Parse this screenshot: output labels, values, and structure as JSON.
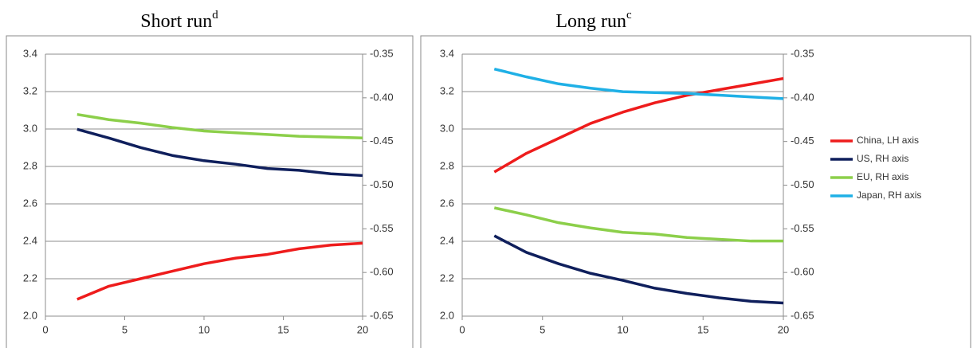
{
  "chart_data": [
    {
      "type": "line",
      "title": "Short run",
      "title_superscript": "d",
      "x": [
        2,
        4,
        6,
        8,
        10,
        12,
        14,
        16,
        18,
        20
      ],
      "xlim": [
        0,
        20
      ],
      "xticks": [
        0,
        5,
        10,
        15,
        20
      ],
      "ylim": [
        2.0,
        3.4
      ],
      "yticks": [
        {
          "value": 2.0,
          "label": "2.0"
        },
        2.2,
        2.4,
        2.6,
        2.8,
        {
          "value": 3.0,
          "label": "3.0"
        },
        3.2,
        3.4
      ],
      "y2lim": [
        -0.65,
        -0.35
      ],
      "y2ticks": [
        -0.65,
        {
          "value": -0.6,
          "label": "-0.60"
        },
        -0.55,
        {
          "value": -0.5,
          "label": "-0.50"
        },
        -0.45,
        {
          "value": -0.4,
          "label": "-0.40"
        },
        -0.35
      ],
      "grid": true,
      "series": [
        {
          "color": "#ee1c1c",
          "values": [
            2.09,
            2.16,
            2.2,
            2.24,
            2.28,
            2.31,
            2.33,
            2.36,
            2.38,
            2.39
          ]
        },
        {
          "color": "#0f1f5c",
          "axis": "y2",
          "values": [
            -0.436,
            -0.446,
            -0.457,
            -0.466,
            -0.472,
            -0.476,
            -0.481,
            -0.483,
            -0.487,
            -0.489
          ]
        },
        {
          "color": "#8ccf4a",
          "axis": "y2",
          "values": [
            -0.419,
            -0.425,
            -0.429,
            -0.434,
            -0.438,
            -0.44,
            -0.442,
            -0.444,
            -0.445,
            -0.446
          ]
        }
      ]
    },
    {
      "type": "line",
      "title": "Long run",
      "title_superscript": "c",
      "x": [
        2,
        4,
        6,
        8,
        10,
        12,
        14,
        16,
        18,
        20
      ],
      "xlim": [
        0,
        20
      ],
      "xticks": [
        0,
        5,
        10,
        15,
        20
      ],
      "ylim": [
        2.0,
        3.4
      ],
      "yticks": [
        {
          "value": 2.0,
          "label": "2.0"
        },
        2.2,
        2.4,
        2.6,
        2.8,
        {
          "value": 3.0,
          "label": "3.0"
        },
        3.2,
        3.4
      ],
      "y2lim": [
        -0.65,
        -0.35
      ],
      "y2ticks": [
        -0.65,
        {
          "value": -0.6,
          "label": "-0.60"
        },
        -0.55,
        {
          "value": -0.5,
          "label": "-0.50"
        },
        -0.45,
        {
          "value": -0.4,
          "label": "-0.40"
        },
        -0.35
      ],
      "grid": true,
      "legend": "right",
      "series": [
        {
          "name": "China, LH axis",
          "color": "#ee1c1c",
          "values": [
            2.77,
            2.87,
            2.95,
            3.03,
            3.09,
            3.14,
            3.18,
            3.21,
            3.24,
            3.27
          ]
        },
        {
          "name": "US, RH axis",
          "color": "#0f1f5c",
          "axis": "y2",
          "values": [
            -0.558,
            -0.577,
            -0.59,
            -0.601,
            -0.609,
            -0.618,
            -0.624,
            -0.629,
            -0.633,
            -0.635
          ]
        },
        {
          "name": "EU, RH axis",
          "color": "#8ccf4a",
          "axis": "y2",
          "values": [
            -0.526,
            -0.534,
            -0.543,
            -0.549,
            -0.554,
            -0.556,
            -0.56,
            -0.562,
            -0.564,
            -0.564
          ]
        },
        {
          "name": "Japan, RH axis",
          "color": "#1fb0e6",
          "axis": "y2",
          "values": [
            -0.367,
            -0.376,
            -0.384,
            -0.389,
            -0.393,
            -0.394,
            -0.395,
            -0.397,
            -0.399,
            -0.401
          ]
        }
      ]
    }
  ]
}
